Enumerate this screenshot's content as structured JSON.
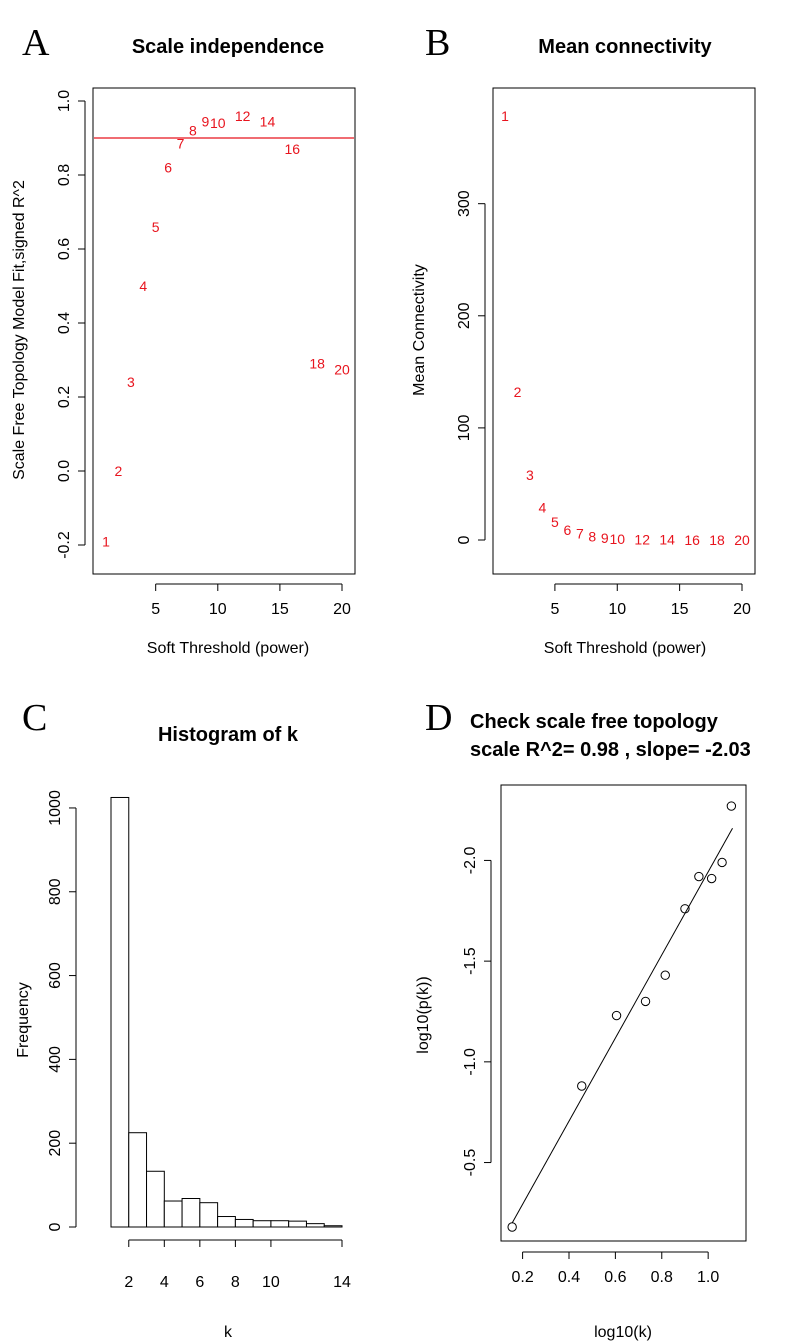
{
  "chart_data": [
    {
      "id": "A",
      "panel_letter": "A",
      "type": "scatter",
      "title": "Scale independence",
      "xlabel": "Soft Threshold (power)",
      "ylabel": "Scale Free Topology Model Fit,signed R^2",
      "xlim": [
        1,
        20
      ],
      "ylim": [
        -0.2,
        1.0
      ],
      "xticks": [
        5,
        10,
        15,
        20
      ],
      "yticks": [
        -0.2,
        0.0,
        0.2,
        0.4,
        0.6,
        0.8,
        1.0
      ],
      "ytick_labels": [
        "-0.2",
        "0.0",
        "0.2",
        "0.4",
        "0.6",
        "0.8",
        "1.0"
      ],
      "hline": 0.9,
      "line_color": "#e8141e",
      "marker": "text-labels",
      "label_color": "#e8141e",
      "points": [
        {
          "x": 1,
          "y": -0.19,
          "label": "1"
        },
        {
          "x": 2,
          "y": 0.0,
          "label": "2"
        },
        {
          "x": 3,
          "y": 0.24,
          "label": "3"
        },
        {
          "x": 4,
          "y": 0.5,
          "label": "4"
        },
        {
          "x": 5,
          "y": 0.66,
          "label": "5"
        },
        {
          "x": 6,
          "y": 0.82,
          "label": "6"
        },
        {
          "x": 7,
          "y": 0.885,
          "label": "7"
        },
        {
          "x": 8,
          "y": 0.92,
          "label": "8"
        },
        {
          "x": 9,
          "y": 0.945,
          "label": "9"
        },
        {
          "x": 10,
          "y": 0.94,
          "label": "10"
        },
        {
          "x": 12,
          "y": 0.96,
          "label": "12"
        },
        {
          "x": 14,
          "y": 0.945,
          "label": "14"
        },
        {
          "x": 16,
          "y": 0.87,
          "label": "16"
        },
        {
          "x": 18,
          "y": 0.29,
          "label": "18"
        },
        {
          "x": 20,
          "y": 0.275,
          "label": "20"
        }
      ]
    },
    {
      "id": "B",
      "panel_letter": "B",
      "type": "scatter",
      "title": "Mean connectivity",
      "xlabel": "Soft Threshold (power)",
      "ylabel": "Mean Connectivity",
      "xlim": [
        1,
        20
      ],
      "ylim": [
        0,
        380
      ],
      "xticks": [
        5,
        10,
        15,
        20
      ],
      "yticks": [
        0,
        100,
        200,
        300
      ],
      "ytick_labels": [
        "0",
        "100",
        "200",
        "300"
      ],
      "marker": "text-labels",
      "label_color": "#e8141e",
      "points": [
        {
          "x": 1,
          "y": 378,
          "label": "1"
        },
        {
          "x": 2,
          "y": 132,
          "label": "2"
        },
        {
          "x": 3,
          "y": 58,
          "label": "3"
        },
        {
          "x": 4,
          "y": 29,
          "label": "4"
        },
        {
          "x": 5,
          "y": 16,
          "label": "5"
        },
        {
          "x": 6,
          "y": 9,
          "label": "6"
        },
        {
          "x": 7,
          "y": 6,
          "label": "7"
        },
        {
          "x": 8,
          "y": 3,
          "label": "8"
        },
        {
          "x": 9,
          "y": 2,
          "label": "9"
        },
        {
          "x": 10,
          "y": 1,
          "label": "10"
        },
        {
          "x": 12,
          "y": 0.5,
          "label": "12"
        },
        {
          "x": 14,
          "y": 0.3,
          "label": "14"
        },
        {
          "x": 16,
          "y": 0.2,
          "label": "16"
        },
        {
          "x": 18,
          "y": 0.1,
          "label": "18"
        },
        {
          "x": 20,
          "y": 0.1,
          "label": "20"
        }
      ]
    },
    {
      "id": "C",
      "panel_letter": "C",
      "type": "bar",
      "title": "Histogram of k",
      "xlabel": "k",
      "ylabel": "Frequency",
      "xlim": [
        1,
        14
      ],
      "ylim": [
        0,
        1050
      ],
      "xticks": [
        2,
        4,
        6,
        8,
        10,
        14
      ],
      "yticks": [
        0,
        200,
        400,
        600,
        800,
        1000
      ],
      "ytick_labels": [
        "0",
        "200",
        "400",
        "600",
        "800",
        "1000"
      ],
      "bin_edges": [
        1,
        2,
        3,
        4,
        5,
        6,
        7,
        8,
        9,
        10,
        11,
        12,
        13,
        14
      ],
      "values": [
        1025,
        225,
        133,
        62,
        68,
        58,
        25,
        18,
        15,
        15,
        14,
        8,
        3
      ]
    },
    {
      "id": "D",
      "panel_letter": "D",
      "type": "scatter",
      "title": "Check scale free topology",
      "subtitle": "scale R^2= 0.98 , slope= -2.03",
      "xlabel": "log10(k)",
      "ylabel": "log10(p(k))",
      "xlim": [
        0.15,
        1.12
      ],
      "ylim": [
        -2.3,
        -0.18
      ],
      "xticks": [
        0.2,
        0.4,
        0.6,
        0.8,
        1.0
      ],
      "xtick_labels": [
        "0.2",
        "0.4",
        "0.6",
        "0.8",
        "1.0"
      ],
      "yticks": [
        -0.5,
        -1.0,
        -1.5,
        -2.0
      ],
      "ytick_labels": [
        "-0.5",
        "-1.0",
        "-1.5",
        "-2.0"
      ],
      "marker": "open-circle",
      "fit_line": {
        "x1": 0.155,
        "y1": -0.2,
        "x2": 1.105,
        "y2": -2.16
      },
      "points": [
        {
          "x": 0.155,
          "y": -0.18
        },
        {
          "x": 0.455,
          "y": -0.88
        },
        {
          "x": 0.605,
          "y": -1.23
        },
        {
          "x": 0.73,
          "y": -1.3
        },
        {
          "x": 0.815,
          "y": -1.43
        },
        {
          "x": 0.9,
          "y": -1.76
        },
        {
          "x": 0.96,
          "y": -1.92
        },
        {
          "x": 1.015,
          "y": -1.91
        },
        {
          "x": 1.06,
          "y": -1.99
        },
        {
          "x": 1.1,
          "y": -2.27
        }
      ]
    }
  ]
}
